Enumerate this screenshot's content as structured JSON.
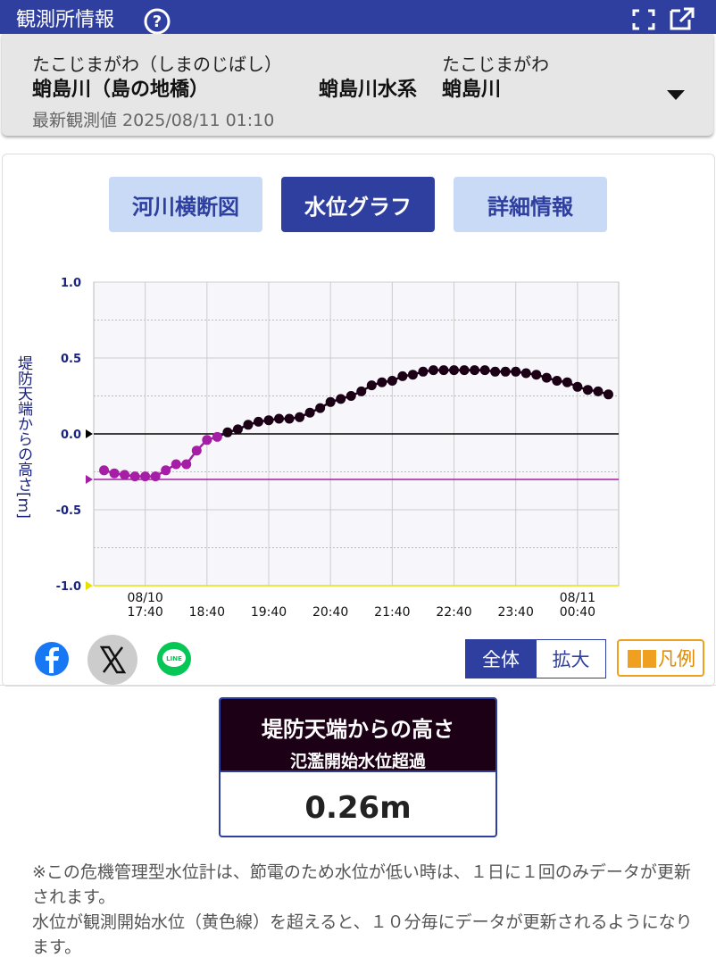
{
  "header": {
    "title": "観測所情報"
  },
  "station": {
    "name_ruby": "たこじまがわ（しまのじばし）",
    "name": "蛸島川（島の地橋）",
    "system": "蛸島川水系",
    "river_ruby": "たこじまがわ",
    "river": "蛸島川",
    "latest": "最新観測値 2025/08/11 01:10"
  },
  "tabs": [
    "河川横断図",
    "水位グラフ",
    "詳細情報"
  ],
  "chart_data": {
    "type": "line",
    "y_label": "堤防天端からの高さ[m]",
    "x": [
      "17:00",
      "17:10",
      "17:20",
      "17:30",
      "17:40",
      "17:50",
      "18:00",
      "18:10",
      "18:20",
      "18:30",
      "18:40",
      "18:50",
      "19:00",
      "19:10",
      "19:20",
      "19:30",
      "19:40",
      "19:50",
      "20:00",
      "20:10",
      "20:20",
      "20:30",
      "20:40",
      "20:50",
      "21:00",
      "21:10",
      "21:20",
      "21:30",
      "21:40",
      "21:50",
      "22:00",
      "22:10",
      "22:20",
      "22:30",
      "22:40",
      "22:50",
      "23:00",
      "23:10",
      "23:20",
      "23:30",
      "23:40",
      "23:50",
      "00:00",
      "00:10",
      "00:20",
      "00:30",
      "00:40",
      "00:50",
      "01:00",
      "01:10"
    ],
    "values": [
      -0.24,
      -0.26,
      -0.27,
      -0.28,
      -0.28,
      -0.28,
      -0.24,
      -0.2,
      -0.2,
      -0.11,
      -0.04,
      -0.02,
      0.01,
      0.03,
      0.06,
      0.08,
      0.09,
      0.1,
      0.1,
      0.11,
      0.14,
      0.17,
      0.21,
      0.23,
      0.25,
      0.28,
      0.32,
      0.34,
      0.35,
      0.38,
      0.39,
      0.41,
      0.42,
      0.42,
      0.42,
      0.42,
      0.42,
      0.42,
      0.41,
      0.41,
      0.41,
      0.4,
      0.39,
      0.37,
      0.35,
      0.34,
      0.31,
      0.29,
      0.28,
      0.26
    ],
    "color_above": "#1c0016",
    "color_below": "#a61ea6",
    "xlim": [
      "16:50",
      "01:20"
    ],
    "xticks": [
      {
        "value": "17:40",
        "label": "17:40",
        "date": "08/10"
      },
      {
        "value": "18:40",
        "label": "18:40"
      },
      {
        "value": "19:40",
        "label": "19:40"
      },
      {
        "value": "20:40",
        "label": "20:40"
      },
      {
        "value": "21:40",
        "label": "21:40"
      },
      {
        "value": "22:40",
        "label": "22:40"
      },
      {
        "value": "23:40",
        "label": "23:40"
      },
      {
        "value": "00:40",
        "label": "00:40",
        "date": "08/11"
      }
    ],
    "ylim": [
      -1,
      1
    ],
    "yticks": [
      {
        "value": 1,
        "label": "1.0"
      },
      {
        "value": 0.5,
        "label": "0.5"
      },
      {
        "value": 0,
        "label": "0.0"
      },
      {
        "value": -0.5,
        "label": "-0.5"
      },
      {
        "value": -1,
        "label": "-1.0"
      }
    ],
    "minor_yticks": [
      0.75,
      0.25,
      -0.25,
      -0.75
    ],
    "reference_lines": [
      {
        "value": 0,
        "color": "#000000"
      },
      {
        "value": -0.3,
        "color": "#a61ea6"
      },
      {
        "value": -1,
        "color": "#e8e000"
      }
    ],
    "grid": true
  },
  "zoom_buttons": [
    "全体",
    "拡大"
  ],
  "legend_button": "凡例",
  "panel": {
    "title": "堤防天端からの高さ",
    "status": "氾濫開始水位超過",
    "value_label": "0.26m"
  },
  "note": [
    "※この危機管理型水位計は、節電のため水位が低い時は、１日に１回のみデータが更新されます。",
    "水位が観測開始水位（黄色線）を超えると、１０分毎にデータが更新されるようになります。"
  ]
}
